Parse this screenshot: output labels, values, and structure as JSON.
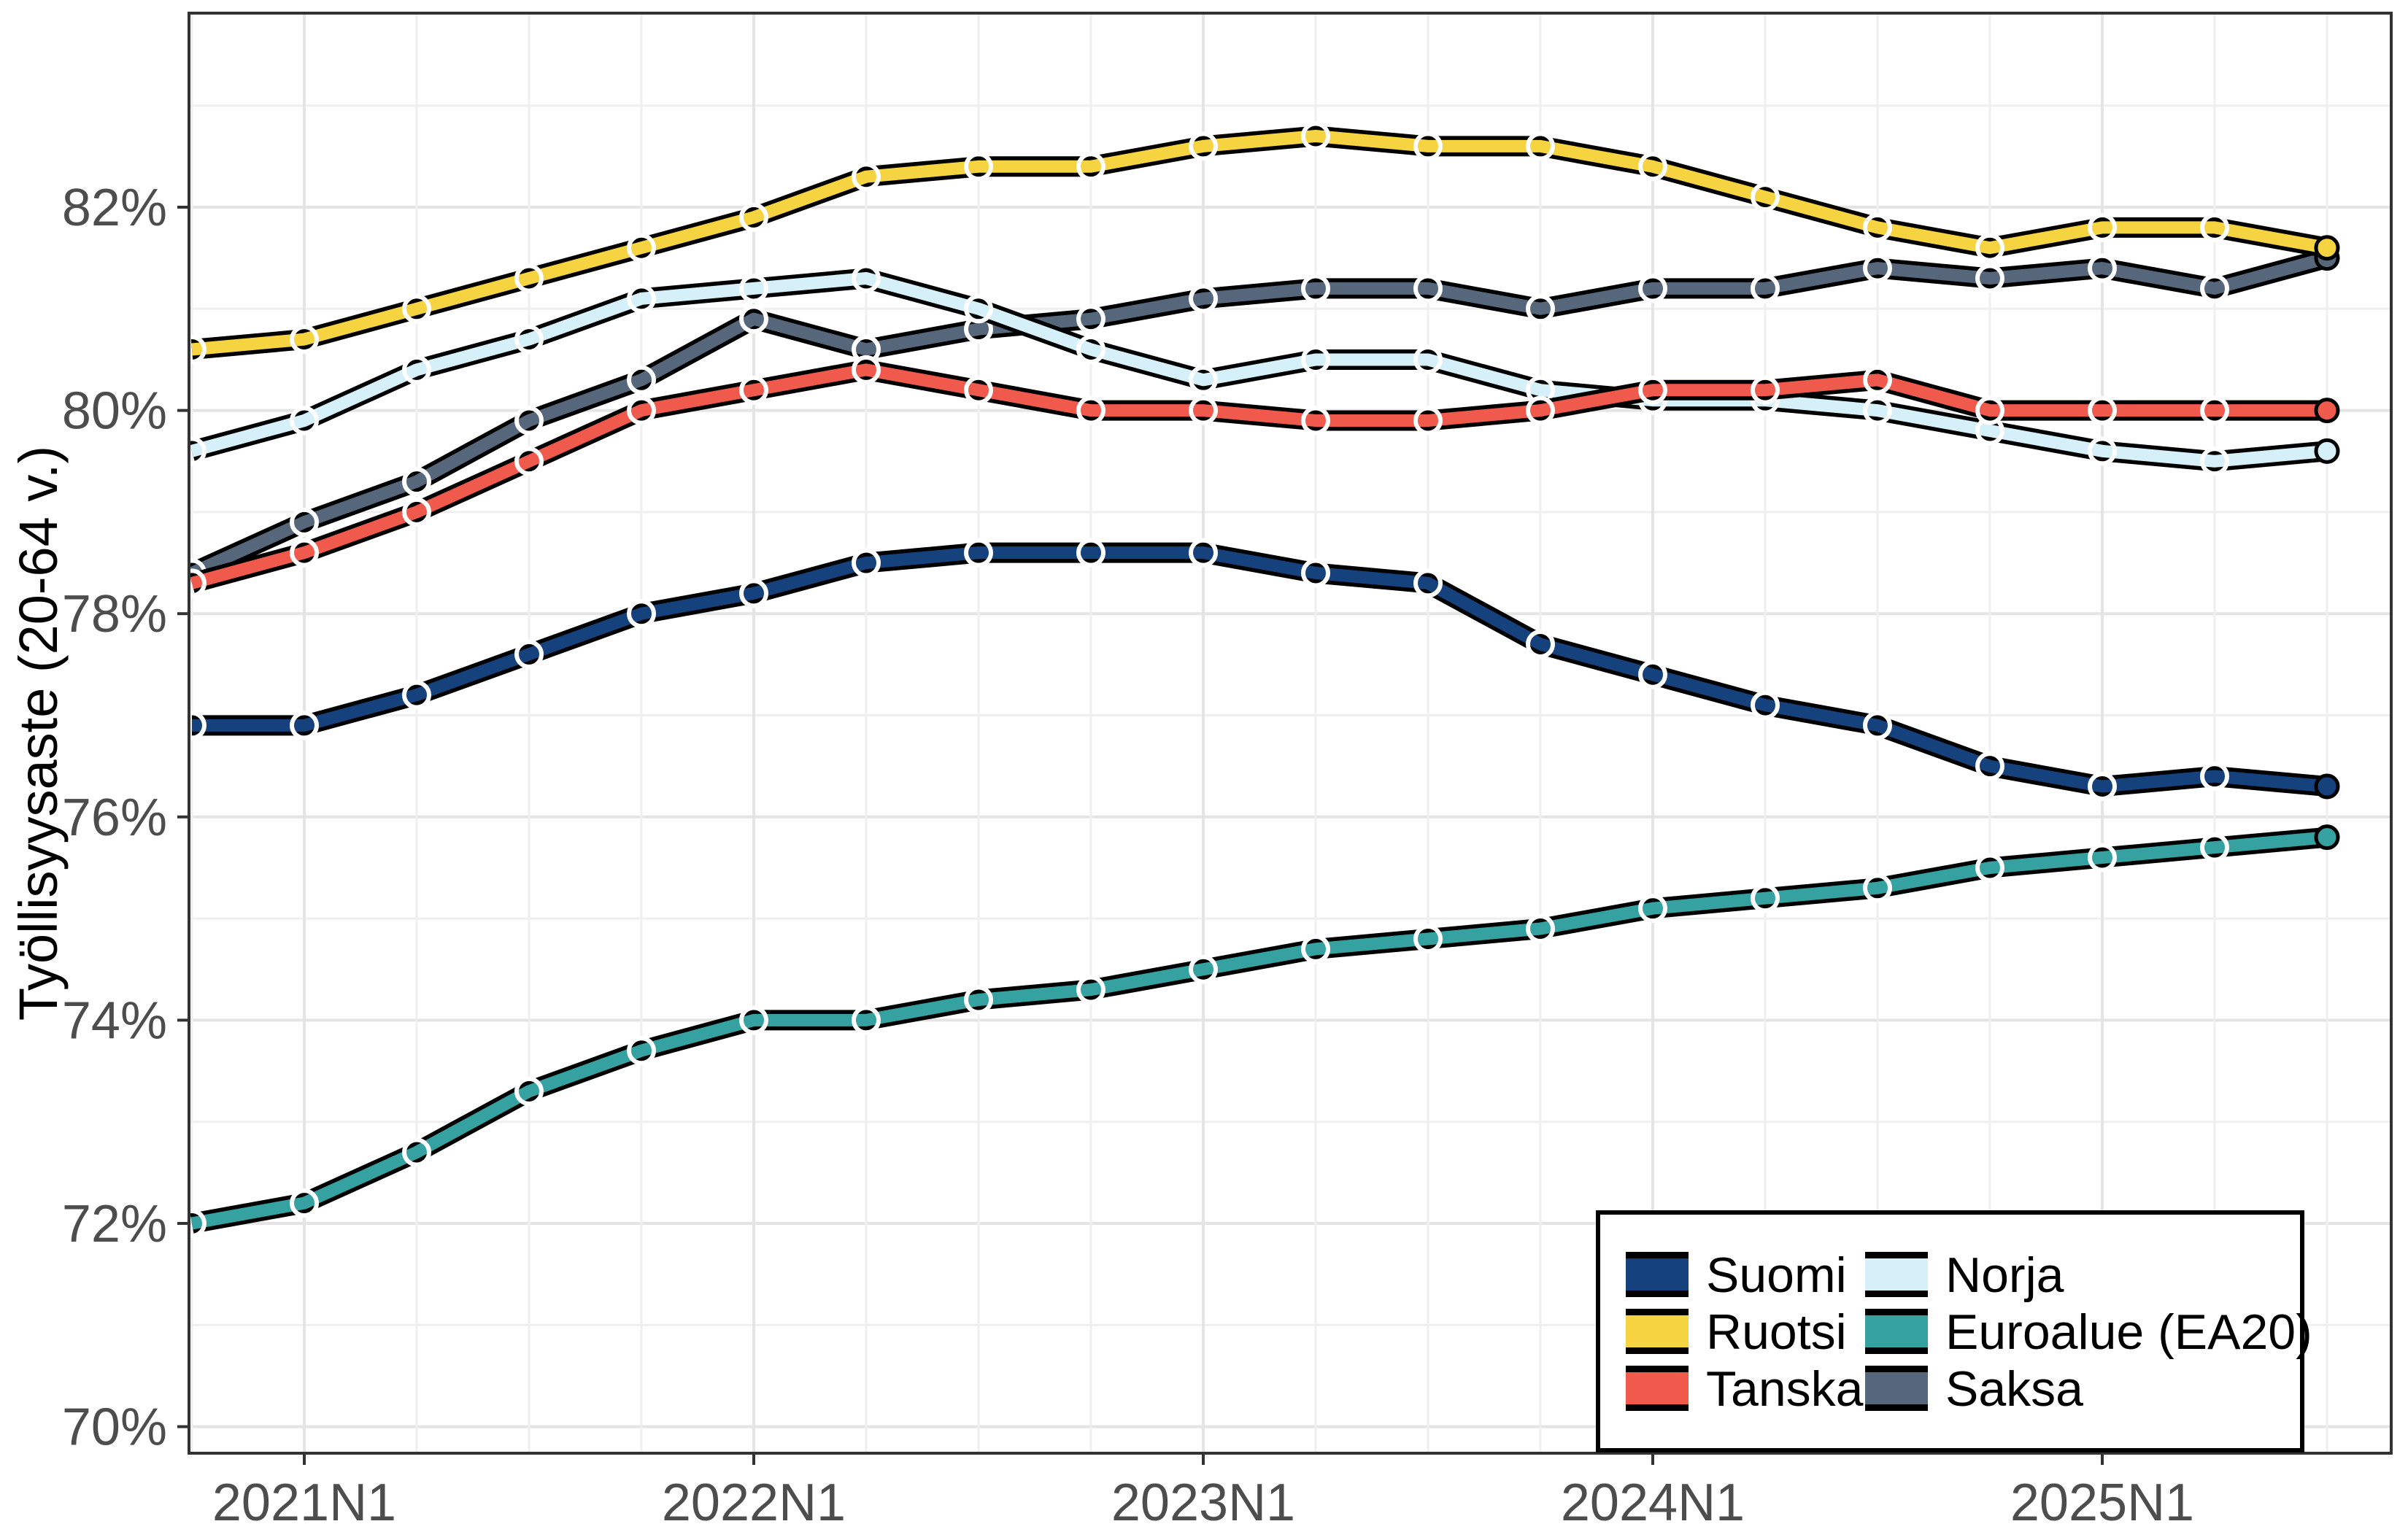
{
  "chart_data": {
    "type": "line",
    "title": "",
    "xlabel": "",
    "ylabel": "Työllisyysaste (20-64 v.)",
    "grid": "on",
    "legend_position": "bottom-right",
    "ylim": [
      69.7,
      83.9
    ],
    "y_axis_ticks": [
      {
        "value": 70,
        "label": "70%"
      },
      {
        "value": 72,
        "label": "72%"
      },
      {
        "value": 74,
        "label": "74%"
      },
      {
        "value": 76,
        "label": "76%"
      },
      {
        "value": 78,
        "label": "78%"
      },
      {
        "value": 80,
        "label": "80%"
      },
      {
        "value": 82,
        "label": "82%"
      }
    ],
    "x_categories": [
      "2020N4",
      "2021N1",
      "2021N2",
      "2021N3",
      "2021N4",
      "2022N1",
      "2022N2",
      "2022N3",
      "2022N4",
      "2023N1",
      "2023N2",
      "2023N3",
      "2023N4",
      "2024N1",
      "2024N2",
      "2024N3",
      "2024N4",
      "2025N1",
      "2025N2",
      "2025N3"
    ],
    "x_axis_ticks": [
      {
        "index": 1,
        "label": "2021N1"
      },
      {
        "index": 5,
        "label": "2022N1"
      },
      {
        "index": 9,
        "label": "2023N1"
      },
      {
        "index": 13,
        "label": "2024N1"
      },
      {
        "index": 17,
        "label": "2025N1"
      }
    ],
    "series": [
      {
        "name": "Suomi",
        "color": "#15427C",
        "values": [
          76.9,
          76.9,
          77.2,
          77.6,
          78.0,
          78.2,
          78.5,
          78.6,
          78.6,
          78.6,
          78.4,
          78.3,
          77.7,
          77.4,
          77.1,
          76.9,
          76.5,
          76.3,
          76.4,
          76.3
        ]
      },
      {
        "name": "Ruotsi",
        "color": "#F5D341",
        "values": [
          80.6,
          80.7,
          81.0,
          81.3,
          81.6,
          81.9,
          82.3,
          82.4,
          82.4,
          82.6,
          82.7,
          82.6,
          82.6,
          82.4,
          82.1,
          81.8,
          81.6,
          81.8,
          81.8,
          81.6
        ]
      },
      {
        "name": "Tanska",
        "color": "#EF5A4D",
        "values": [
          78.3,
          78.6,
          79.0,
          79.5,
          80.0,
          80.2,
          80.4,
          80.2,
          80.0,
          80.0,
          79.9,
          79.9,
          80.0,
          80.2,
          80.2,
          80.3,
          80.0,
          80.0,
          80.0,
          80.0
        ]
      },
      {
        "name": "Norja",
        "color": "#D5F0F8",
        "values": [
          79.6,
          79.9,
          80.4,
          80.7,
          81.1,
          81.2,
          81.3,
          81.0,
          80.6,
          80.3,
          80.5,
          80.5,
          80.2,
          80.1,
          80.1,
          80.0,
          79.8,
          79.6,
          79.5,
          79.6
        ]
      },
      {
        "name": "Euroalue (EA20)",
        "color": "#35A1A1",
        "values": [
          72.0,
          72.2,
          72.7,
          73.3,
          73.7,
          74.0,
          74.0,
          74.2,
          74.3,
          74.5,
          74.7,
          74.8,
          74.9,
          75.1,
          75.2,
          75.3,
          75.5,
          75.6,
          75.7,
          75.8
        ]
      },
      {
        "name": "Saksa",
        "color": "#56677C",
        "values": [
          78.4,
          78.9,
          79.3,
          79.9,
          80.3,
          80.9,
          80.6,
          80.8,
          80.9,
          81.1,
          81.2,
          81.2,
          81.0,
          81.2,
          81.2,
          81.4,
          81.3,
          81.4,
          81.2,
          81.5
        ]
      }
    ],
    "legend_columns": [
      [
        "Suomi",
        "Ruotsi",
        "Tanska"
      ],
      [
        "Norja",
        "Euroalue (EA20)",
        "Saksa"
      ]
    ],
    "draw_order": [
      "Saksa",
      "Euroalue (EA20)",
      "Norja",
      "Tanska",
      "Ruotsi",
      "Suomi"
    ]
  },
  "style_colors": {
    "grid_major": "#E4E4E4",
    "grid_minor": "#EFEFEF",
    "panel_border": "#333333",
    "tick_mark": "#333333",
    "tick_label": "#4D4D4D",
    "axis_title": "#000000",
    "ribbon_outline": "#000000",
    "marker_ring": "#FFFFFF",
    "legend_border": "#000000",
    "legend_bg": "#FFFFFF"
  }
}
